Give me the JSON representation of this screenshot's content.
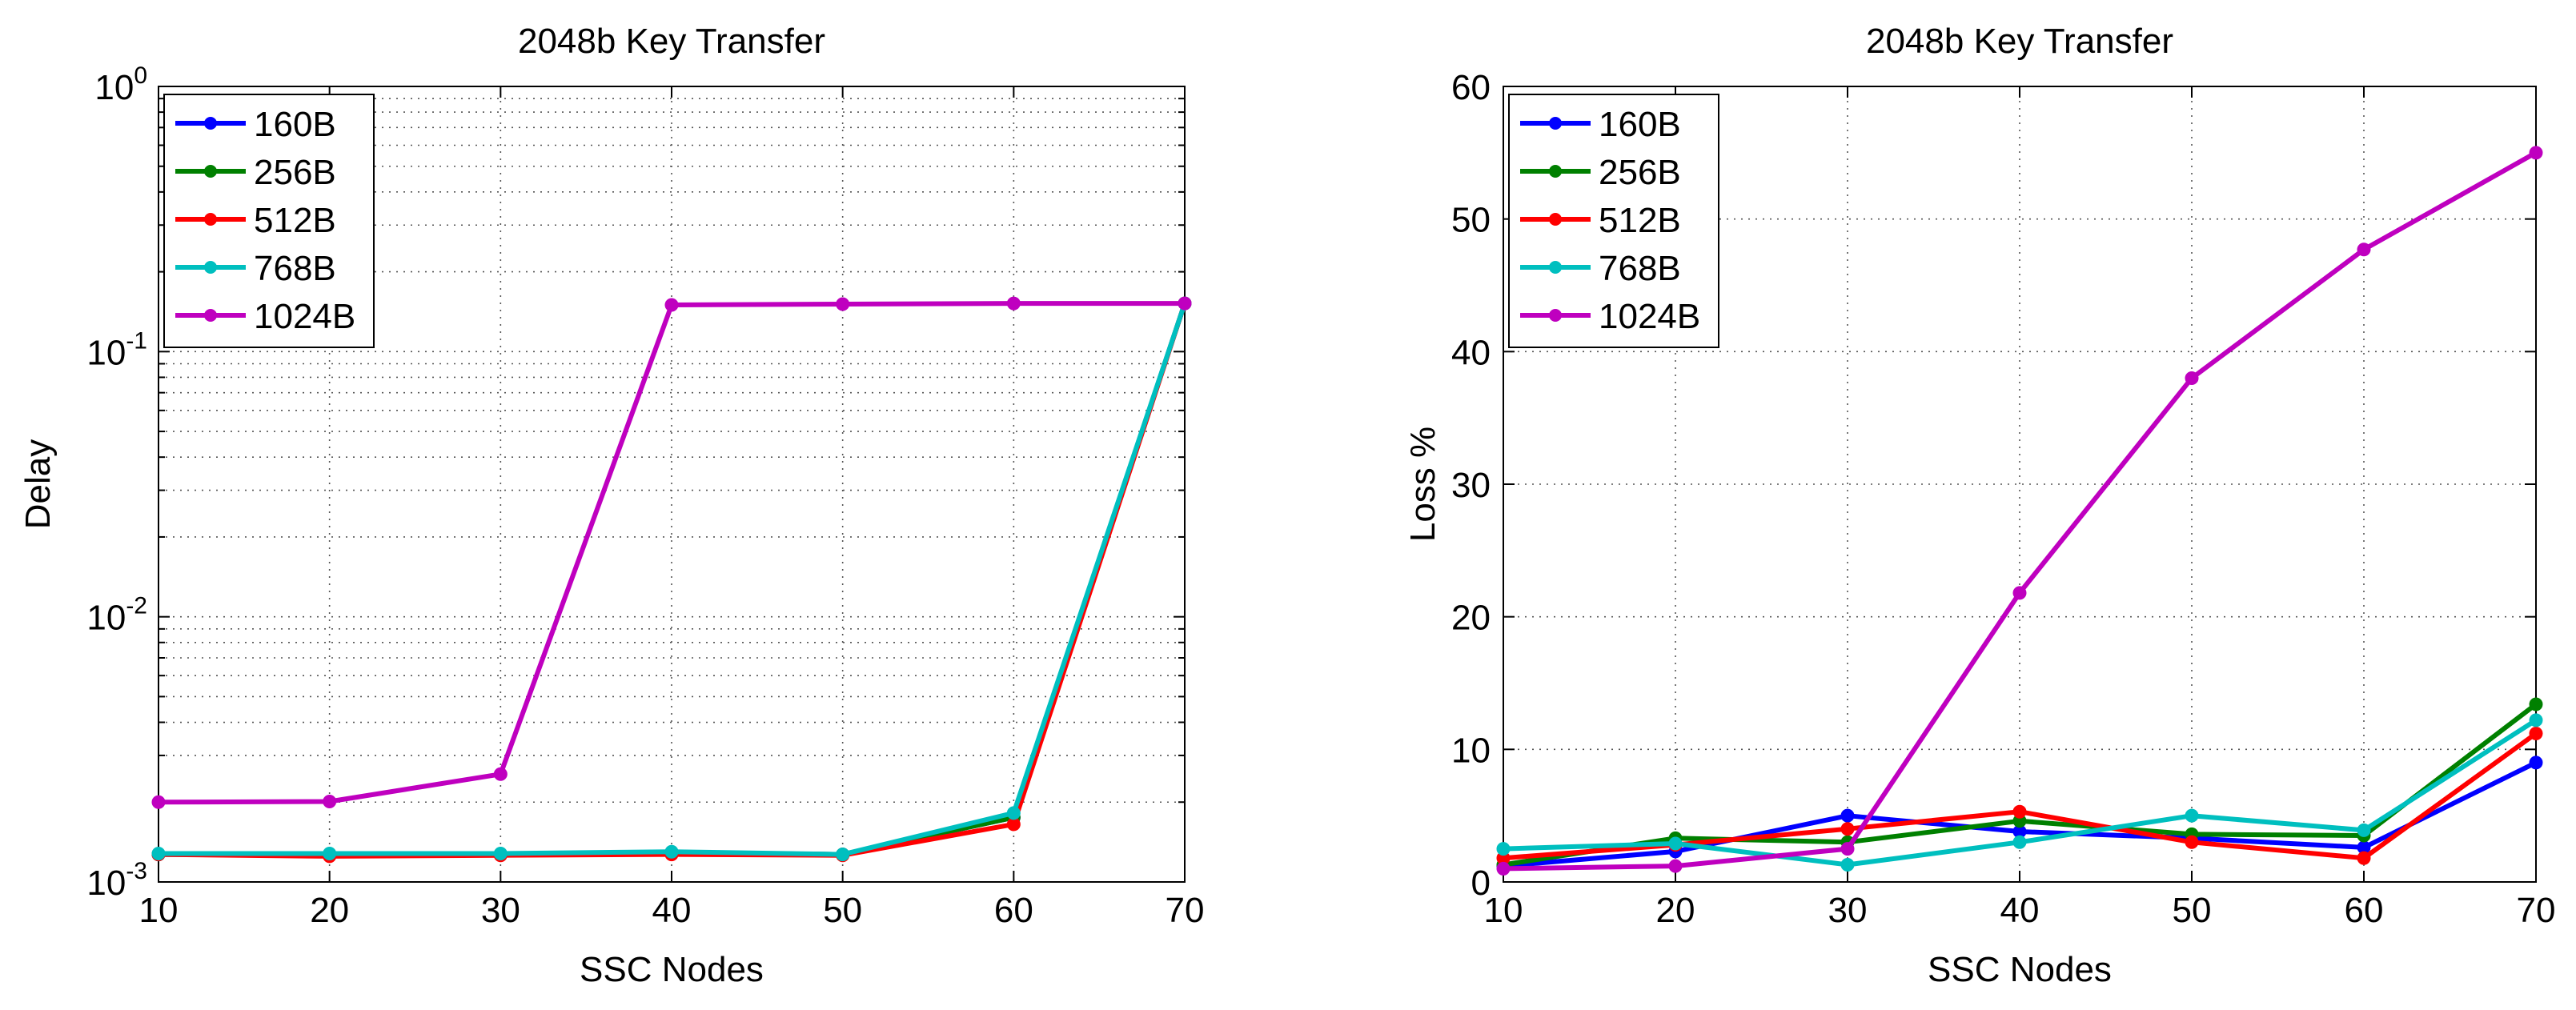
{
  "chart_data": [
    {
      "type": "line",
      "title": "2048b Key Transfer",
      "xlabel": "SSC Nodes",
      "ylabel": "Delay",
      "xlim": [
        10,
        70
      ],
      "ylim": [
        0.001,
        1
      ],
      "yscale": "log",
      "grid": true,
      "legend_placement": "top-left",
      "x": [
        10,
        20,
        30,
        40,
        50,
        60,
        70
      ],
      "xticks": [
        "10",
        "20",
        "30",
        "40",
        "50",
        "60",
        "70"
      ],
      "yticks": [
        {
          "value": 0.001,
          "base": "10",
          "exp": "-3"
        },
        {
          "value": 0.01,
          "base": "10",
          "exp": "-2"
        },
        {
          "value": 0.1,
          "base": "10",
          "exp": "-1"
        },
        {
          "value": 1,
          "base": "10",
          "exp": "0"
        }
      ],
      "series": [
        {
          "name": "160B",
          "color": "#0000ff",
          "values": [
            0.00127,
            0.00127,
            0.00127,
            0.00129,
            0.00127,
            0.00175,
            0.152
          ]
        },
        {
          "name": "256B",
          "color": "#008000",
          "values": [
            0.00127,
            0.00127,
            0.00127,
            0.00129,
            0.00127,
            0.00175,
            0.152
          ]
        },
        {
          "name": "512B",
          "color": "#ff0000",
          "values": [
            0.00127,
            0.00125,
            0.00126,
            0.00127,
            0.00126,
            0.00165,
            0.152
          ]
        },
        {
          "name": "768B",
          "color": "#00bfbf",
          "values": [
            0.00128,
            0.00128,
            0.00128,
            0.0013,
            0.00127,
            0.00182,
            0.152
          ]
        },
        {
          "name": "1024B",
          "color": "#bf00bf",
          "values": [
            0.002,
            0.00201,
            0.00255,
            0.15,
            0.151,
            0.152,
            0.152
          ]
        }
      ]
    },
    {
      "type": "line",
      "title": "2048b Key Transfer",
      "xlabel": "SSC Nodes",
      "ylabel": "Loss %",
      "xlim": [
        10,
        70
      ],
      "ylim": [
        0,
        60
      ],
      "yscale": "linear",
      "grid": true,
      "legend_placement": "top-left",
      "x": [
        10,
        20,
        30,
        40,
        50,
        60,
        70
      ],
      "xticks": [
        "10",
        "20",
        "30",
        "40",
        "50",
        "60",
        "70"
      ],
      "yticks": [
        {
          "value": 0,
          "label": "0"
        },
        {
          "value": 10,
          "label": "10"
        },
        {
          "value": 20,
          "label": "20"
        },
        {
          "value": 30,
          "label": "30"
        },
        {
          "value": 40,
          "label": "40"
        },
        {
          "value": 50,
          "label": "50"
        },
        {
          "value": 60,
          "label": "60"
        }
      ],
      "series": [
        {
          "name": "160B",
          "color": "#0000ff",
          "values": [
            1.2,
            2.3,
            5.0,
            3.8,
            3.3,
            2.6,
            9.0
          ]
        },
        {
          "name": "256B",
          "color": "#008000",
          "values": [
            1.3,
            3.3,
            3.0,
            4.6,
            3.6,
            3.5,
            13.4
          ]
        },
        {
          "name": "512B",
          "color": "#ff0000",
          "values": [
            1.8,
            2.8,
            4.0,
            5.3,
            3.0,
            1.8,
            11.2
          ]
        },
        {
          "name": "768B",
          "color": "#00bfbf",
          "values": [
            2.5,
            2.9,
            1.3,
            3.0,
            5.0,
            3.9,
            12.2
          ]
        },
        {
          "name": "1024B",
          "color": "#bf00bf",
          "values": [
            1.0,
            1.2,
            2.5,
            21.8,
            38.0,
            47.7,
            55.0
          ]
        }
      ]
    }
  ]
}
